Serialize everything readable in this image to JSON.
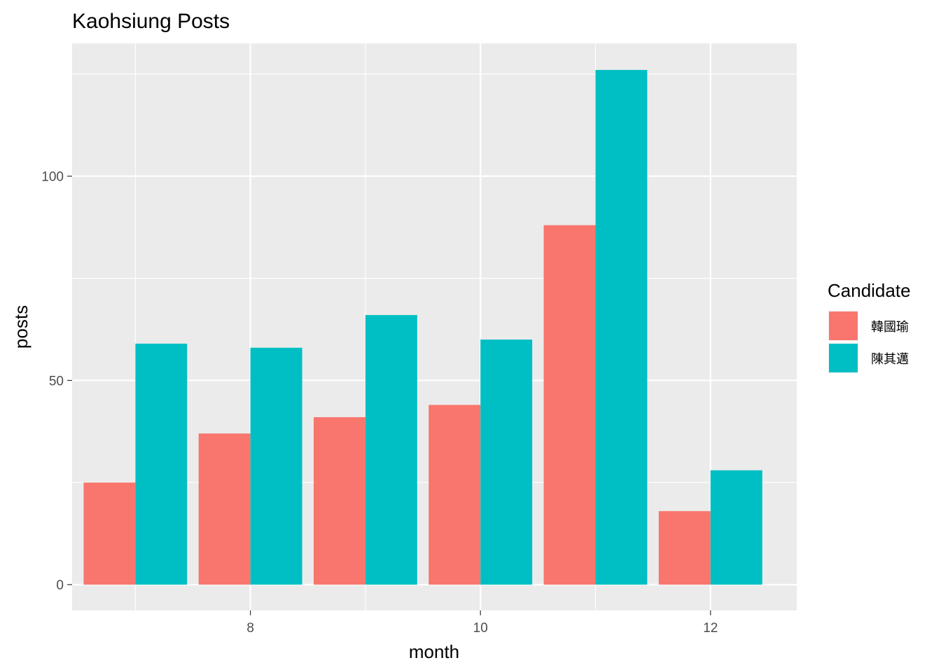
{
  "chart_data": {
    "type": "bar",
    "title": "Kaohsiung Posts",
    "xlabel": "month",
    "ylabel": "posts",
    "x": [
      7,
      8,
      9,
      10,
      11,
      12
    ],
    "x_ticks": [
      8,
      10,
      12
    ],
    "x_tick_labels": [
      "8",
      "10",
      "12"
    ],
    "xlim": [
      6.45,
      12.75
    ],
    "y_ticks": [
      0,
      50,
      100
    ],
    "y_tick_labels": [
      "0",
      "50",
      "100"
    ],
    "ylim": [
      -6.3,
      132.5
    ],
    "grid": true,
    "legend": {
      "title": "Candidate",
      "position": "right"
    },
    "series": [
      {
        "name": "韓國瑜",
        "color": "#F8766D",
        "values": [
          25,
          37,
          41,
          44,
          88,
          18
        ]
      },
      {
        "name": "陳其邁",
        "color": "#00BFC4",
        "values": [
          59,
          58,
          66,
          60,
          126,
          28
        ]
      }
    ]
  }
}
